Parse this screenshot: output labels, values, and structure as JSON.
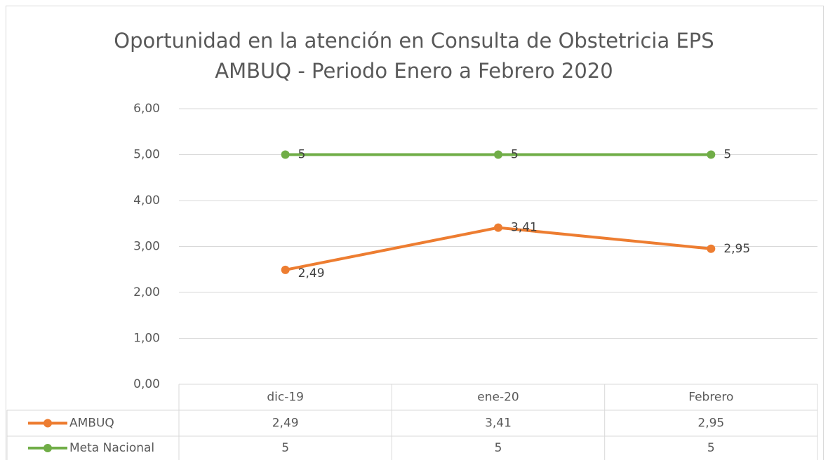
{
  "chart_data": {
    "type": "line",
    "title": [
      "Oportunidad en la atención en Consulta de Obstetricia EPS",
      "AMBUQ - Periodo Enero a Febrero 2020"
    ],
    "categories": [
      "dic-19",
      "ene-20",
      "Febrero"
    ],
    "series": [
      {
        "name": "AMBUQ",
        "color": "#ED7D31",
        "values": [
          2.49,
          3.41,
          2.95
        ],
        "value_labels": [
          "2,49",
          "3,41",
          "2,95"
        ]
      },
      {
        "name": "Meta Nacional",
        "color": "#70AD47",
        "values": [
          5,
          5,
          5
        ]
      }
    ],
    "ylim": [
      0,
      6
    ],
    "yticks": [
      {
        "value": 0,
        "label": "0,00"
      },
      {
        "value": 1,
        "label": "1,00"
      },
      {
        "value": 2,
        "label": "2,00"
      },
      {
        "value": 3,
        "label": "3,00"
      },
      {
        "value": 4,
        "label": "4,00"
      },
      {
        "value": 5,
        "label": "5,00"
      },
      {
        "value": 6,
        "label": "6,00"
      }
    ],
    "grid": true,
    "data_table": true
  }
}
